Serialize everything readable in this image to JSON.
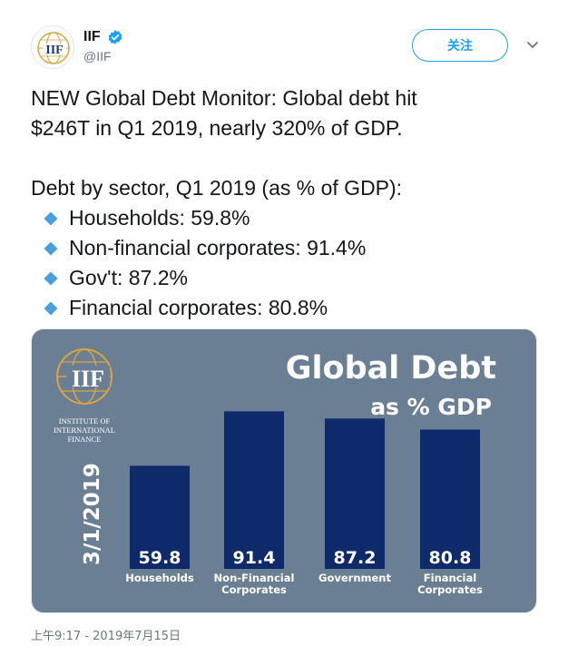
{
  "account": {
    "display_name": "IIF",
    "handle": "@IIF",
    "follow_label": "关注",
    "avatar_text": "IIF"
  },
  "tweet": {
    "line1": "NEW Global Debt Monitor: Global debt hit",
    "line2": "$246T in Q1 2019, nearly 320% of GDP.",
    "line3": "Debt by sector, Q1 2019 (as % of GDP):",
    "bullets": [
      "Households: 59.8%",
      "Non-financial corporates: 91.4%",
      "Gov't: 87.2%",
      "Financial corporates: 80.8%"
    ],
    "timestamp": "上午9:17 - 2019年7月15日"
  },
  "colors": {
    "accent": "#1da1f2",
    "diamond": "#4a9fe0",
    "chart_bg": "#6b7f94",
    "bar": "#0f2a6b",
    "logo_gold": "#d9a441"
  },
  "chart_data": {
    "type": "bar",
    "title": "Global Debt",
    "subtitle": "as % GDP",
    "date_label": "3/1/2019",
    "logo_text": "IIF",
    "logo_caption": [
      "INSTITUTE OF",
      "INTERNATIONAL",
      "FINANCE"
    ],
    "categories": [
      [
        "Households"
      ],
      [
        "Non-Financial",
        "Corporates"
      ],
      [
        "Government"
      ],
      [
        "Financial",
        "Corporates"
      ]
    ],
    "values": [
      59.8,
      91.4,
      87.2,
      80.8
    ],
    "value_labels": [
      "59.8",
      "91.4",
      "87.2",
      "80.8"
    ],
    "ylim": [
      0,
      100
    ],
    "grid": false,
    "legend": "none"
  }
}
